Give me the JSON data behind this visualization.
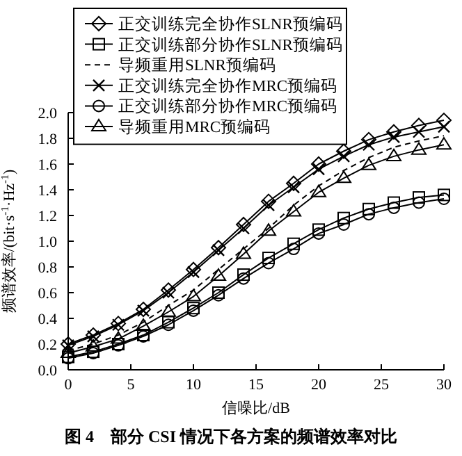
{
  "chart_data": {
    "type": "line",
    "xlabel": "信噪比/dB",
    "ylabel": "频谱效率/(bit·s$^{-1}$·Hz$^{-1}$)",
    "annotations": [
      "图 4　部分 CSI 情况下各方案的频谱效率对比"
    ],
    "x": [
      0,
      2,
      4,
      6,
      8,
      10,
      12,
      14,
      16,
      18,
      20,
      22,
      24,
      26,
      28,
      30
    ],
    "xlim": [
      0,
      30
    ],
    "xticks": [
      0,
      5,
      10,
      15,
      20,
      25,
      30
    ],
    "ylim": [
      0,
      2
    ],
    "yticks": [
      {
        "value": 0,
        "label": "0.0"
      },
      {
        "value": 0.2,
        "label": "0.2"
      },
      {
        "value": 0.4,
        "label": "0.4"
      },
      {
        "value": 0.6,
        "label": "0.6"
      },
      {
        "value": 0.8,
        "label": "0.8"
      },
      {
        "value": 1,
        "label": "1.0"
      },
      {
        "value": 1.2,
        "label": "1.2"
      },
      {
        "value": 1.4,
        "label": "1.4"
      },
      {
        "value": 1.6,
        "label": "1.6"
      },
      {
        "value": 1.8,
        "label": "1.8"
      },
      {
        "value": 2,
        "label": "2.0"
      }
    ],
    "legend": "top left",
    "grid": false,
    "series": [
      {
        "name": "正交训练完全协作SLNR预编码",
        "color": "#000000",
        "marker": "diamond",
        "line_style": "solid",
        "values": [
          0.2,
          0.27,
          0.36,
          0.47,
          0.62,
          0.78,
          0.95,
          1.13,
          1.31,
          1.45,
          1.6,
          1.7,
          1.79,
          1.85,
          1.9,
          1.94
        ]
      },
      {
        "name": "正交训练部分协作SLNR预编码",
        "color": "#000000",
        "marker": "square",
        "line_style": "solid",
        "values": [
          0.1,
          0.14,
          0.2,
          0.27,
          0.37,
          0.48,
          0.6,
          0.74,
          0.87,
          0.98,
          1.09,
          1.18,
          1.25,
          1.3,
          1.34,
          1.36
        ]
      },
      {
        "name": "导频重用SLNR预编码",
        "color": "#000000",
        "marker": "none",
        "line_style": "dashed",
        "values": [
          0.15,
          0.2,
          0.27,
          0.37,
          0.5,
          0.62,
          0.78,
          0.94,
          1.1,
          1.28,
          1.43,
          1.55,
          1.65,
          1.73,
          1.78,
          1.82
        ]
      },
      {
        "name": "正交训练完全协作MRC预编码",
        "color": "#000000",
        "marker": "cross",
        "line_style": "solid",
        "values": [
          0.19,
          0.26,
          0.35,
          0.46,
          0.6,
          0.76,
          0.93,
          1.1,
          1.28,
          1.42,
          1.56,
          1.66,
          1.75,
          1.81,
          1.85,
          1.89
        ]
      },
      {
        "name": "正交训练部分协作MRC预编码",
        "color": "#000000",
        "marker": "circle",
        "line_style": "solid",
        "values": [
          0.09,
          0.13,
          0.19,
          0.26,
          0.35,
          0.46,
          0.58,
          0.71,
          0.83,
          0.94,
          1.06,
          1.13,
          1.21,
          1.26,
          1.3,
          1.33
        ]
      },
      {
        "name": "导频重用MRC预编码",
        "color": "#000000",
        "marker": "triangle",
        "line_style": "solid",
        "values": [
          0.13,
          0.18,
          0.24,
          0.34,
          0.45,
          0.57,
          0.73,
          0.9,
          1.08,
          1.23,
          1.38,
          1.49,
          1.59,
          1.66,
          1.71,
          1.75
        ]
      }
    ]
  }
}
